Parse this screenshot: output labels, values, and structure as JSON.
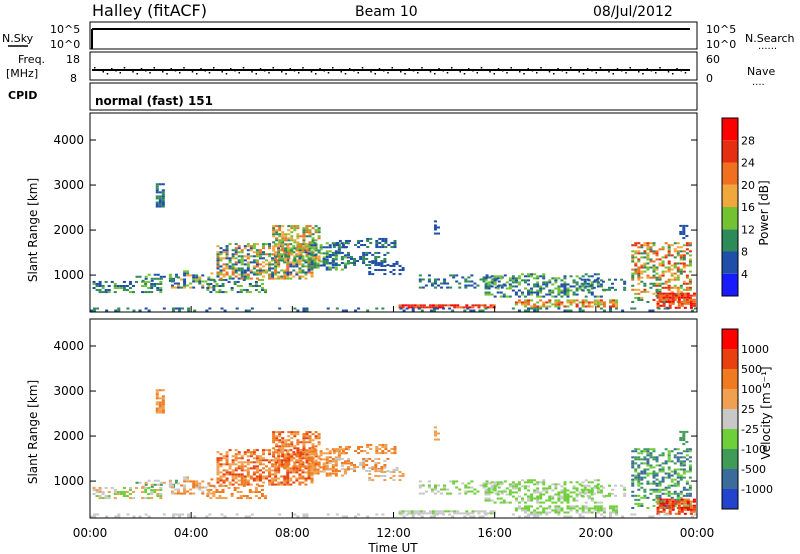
{
  "header": {
    "station": "Halley (fitACF)",
    "beam": "Beam 10",
    "date": "08/Jul/2012"
  },
  "top_panels": {
    "nsky_label": "N.Sky",
    "nsearch_label": "N.Search",
    "freq_label_line1": "Freq.",
    "freq_label_line2": "[MHz]",
    "nave_label": "Nave",
    "cpid_label": "CPID",
    "cpid_text": "normal (fast) 151",
    "noise_ticks_left": [
      "10^5",
      "10^0"
    ],
    "noise_ticks_right": [
      "10^5",
      "10^0"
    ],
    "freq_ticks": [
      "18",
      "8"
    ],
    "nave_ticks": [
      "60",
      "0"
    ],
    "dots": "......",
    "dots_short": "...."
  },
  "chart_data": [
    {
      "type": "heatmap",
      "name": "Power",
      "ylabel": "Slant Range [km]",
      "ylim": [
        180,
        4600
      ],
      "yticks": [
        "1000",
        "2000",
        "3000",
        "4000"
      ],
      "xlim": [
        0,
        24
      ],
      "colorbar_label": "Power [dB]",
      "colorbar_ticks": [
        "4",
        "8",
        "12",
        "16",
        "20",
        "24",
        "28"
      ],
      "colorbar_colors": [
        "#1a1aff",
        "#1f4fa8",
        "#2e8a58",
        "#72c232",
        "#f0a83c",
        "#f07020",
        "#e62e10",
        "#ff0000"
      ]
    },
    {
      "type": "heatmap",
      "name": "Velocity",
      "ylabel": "Slant Range [km]",
      "ylim": [
        180,
        4600
      ],
      "yticks": [
        "1000",
        "2000",
        "3000",
        "4000"
      ],
      "xlim": [
        0,
        24
      ],
      "xlabel": "Time UT",
      "xticks": [
        "00:00",
        "04:00",
        "08:00",
        "12:00",
        "16:00",
        "20:00",
        "00:00"
      ],
      "colorbar_label": "Velocity [m s⁻¹]",
      "colorbar_ticks": [
        "1000",
        "500",
        "100",
        "25",
        "-25",
        "-100",
        "-500",
        "-1000"
      ],
      "colorbar_colors": [
        "#2244cc",
        "#3b6b9a",
        "#3f9b57",
        "#6fcf3a",
        "#c8c8c8",
        "#f0a050",
        "#f07a20",
        "#e94010",
        "#ff0000"
      ]
    }
  ]
}
